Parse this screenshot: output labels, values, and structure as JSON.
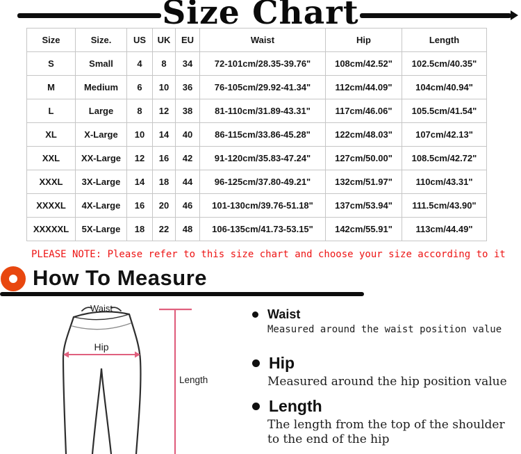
{
  "page": {
    "title": "Size Chart"
  },
  "size_table": {
    "headers": [
      "Size",
      "Size.",
      "US",
      "UK",
      "EU",
      "Waist",
      "Hip",
      "Length"
    ],
    "rows": [
      [
        "S",
        "Small",
        "4",
        "8",
        "34",
        "72-101cm/28.35-39.76\"",
        "108cm/42.52\"",
        "102.5cm/40.35\""
      ],
      [
        "M",
        "Medium",
        "6",
        "10",
        "36",
        "76-105cm/29.92-41.34\"",
        "112cm/44.09\"",
        "104cm/40.94\""
      ],
      [
        "L",
        "Large",
        "8",
        "12",
        "38",
        "81-110cm/31.89-43.31\"",
        "117cm/46.06\"",
        "105.5cm/41.54\""
      ],
      [
        "XL",
        "X-Large",
        "10",
        "14",
        "40",
        "86-115cm/33.86-45.28\"",
        "122cm/48.03\"",
        "107cm/42.13\""
      ],
      [
        "XXL",
        "XX-Large",
        "12",
        "16",
        "42",
        "91-120cm/35.83-47.24\"",
        "127cm/50.00\"",
        "108.5cm/42.72\""
      ],
      [
        "XXXL",
        "3X-Large",
        "14",
        "18",
        "44",
        "96-125cm/37.80-49.21\"",
        "132cm/51.97\"",
        "110cm/43.31\""
      ],
      [
        "XXXXL",
        "4X-Large",
        "16",
        "20",
        "46",
        "101-130cm/39.76-51.18\"",
        "137cm/53.94\"",
        "111.5cm/43.90\""
      ],
      [
        "XXXXXL",
        "5X-Large",
        "18",
        "22",
        "48",
        "106-135cm/41.73-53.15\"",
        "142cm/55.91\"",
        "113cm/44.49\""
      ]
    ]
  },
  "note": {
    "text": "PLEASE NOTE: Please refer to this size chart and choose your size according to it"
  },
  "how_to_measure": {
    "heading": "How To Measure",
    "items": [
      {
        "label": "Waist",
        "desc": "Measured around the waist position value"
      },
      {
        "label": "Hip",
        "desc": "Measured around the  hip position value"
      },
      {
        "label": "Length",
        "desc": "The length from the top of the shoulder to the end of the hip"
      }
    ]
  },
  "diagram": {
    "waist_label": "Waist",
    "hip_label": "Hip",
    "length_label": "Length"
  },
  "colors": {
    "note_red": "#ed1414",
    "accent_orange": "#e8470f",
    "measure_pink": "#e0607e",
    "table_border": "#c6c6c6",
    "ink_black": "#0d0d0d"
  }
}
